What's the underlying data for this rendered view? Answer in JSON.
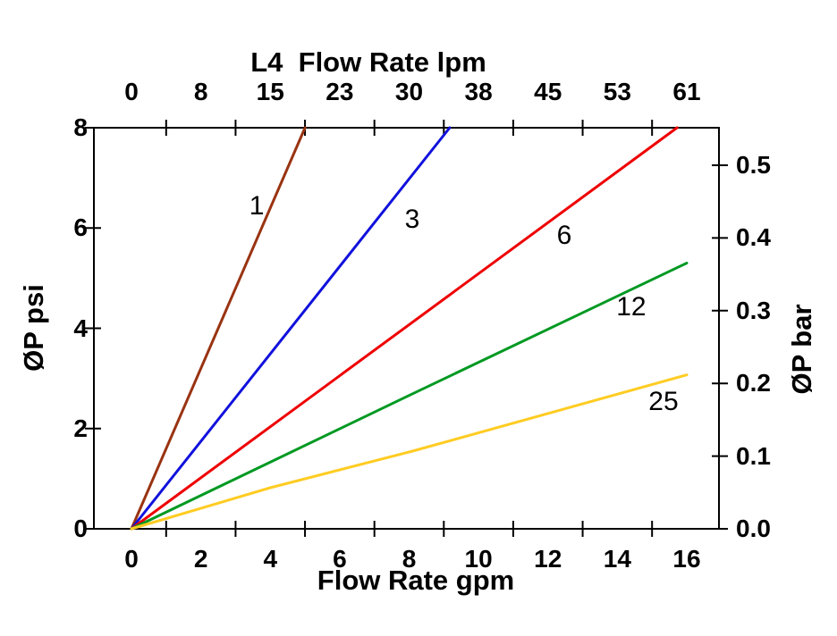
{
  "figure": {
    "background_color": "#ffffff",
    "frame_color": "#000000"
  },
  "chart_data": {
    "type": "line",
    "title": "L4  Flow Rate lpm",
    "top_axis": {
      "label": "L4  Flow Rate lpm",
      "unit": "lpm",
      "tick_labels": [
        "0",
        "8",
        "15",
        "23",
        "30",
        "38",
        "45",
        "53",
        "61"
      ]
    },
    "bottom_axis": {
      "label": "Flow Rate gpm",
      "unit": "gpm",
      "tick_labels": [
        "0",
        "2",
        "4",
        "6",
        "8",
        "10",
        "12",
        "14",
        "16"
      ],
      "range": [
        0,
        16
      ]
    },
    "left_axis": {
      "label": "ØP psi",
      "unit": "psi",
      "tick_labels": [
        "0",
        "2",
        "4",
        "6",
        "8"
      ],
      "range": [
        0,
        8
      ]
    },
    "right_axis": {
      "label": "ØP bar",
      "unit": "bar",
      "tick_labels": [
        "0.0",
        "0.1",
        "0.2",
        "0.3",
        "0.4",
        "0.5"
      ],
      "range": [
        0,
        0.55
      ],
      "psi_per_bar": 14.5038
    },
    "grid": false,
    "legend": "inline-line-labels",
    "series": [
      {
        "name": "1",
        "color": "#993311",
        "points_gpm_psi": [
          [
            0,
            0
          ],
          [
            5.0,
            8.0
          ]
        ],
        "label_at": [
          3.61,
          6.43
        ]
      },
      {
        "name": "3",
        "color": "#1111dd",
        "points_gpm_psi": [
          [
            0,
            0
          ],
          [
            9.17,
            8.0
          ]
        ],
        "label_at": [
          8.09,
          6.17
        ]
      },
      {
        "name": "6",
        "color": "#ee0000",
        "points_gpm_psi": [
          [
            0,
            0
          ],
          [
            15.72,
            8.0
          ]
        ],
        "label_at": [
          12.47,
          5.84
        ]
      },
      {
        "name": "12",
        "color": "#009922",
        "points_gpm_psi": [
          [
            0,
            0
          ],
          [
            8.0,
            2.66
          ],
          [
            16.0,
            5.3
          ]
        ],
        "label_at": [
          14.4,
          4.42
        ]
      },
      {
        "name": "25",
        "color": "#ffcc22",
        "points_gpm_psi": [
          [
            0,
            0
          ],
          [
            4.0,
            0.82
          ],
          [
            8.1,
            1.55
          ],
          [
            16.0,
            3.07
          ]
        ],
        "label_at": [
          15.33,
          2.53
        ]
      }
    ]
  }
}
